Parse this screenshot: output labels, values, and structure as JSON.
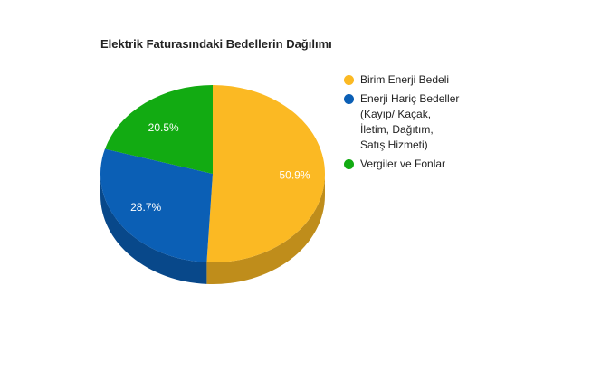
{
  "chart_data": {
    "type": "pie",
    "title": "Elektrik Faturasındaki Bedellerin Dağılımı",
    "categories": [
      "Birim Enerji Bedeli",
      "Enerji Hariç Bedeller (Kayıp/ Kaçak, İletim, Dağıtım, Satış Hizmeti)",
      "Vergiler ve Fonlar"
    ],
    "values": [
      50.9,
      28.7,
      20.5
    ],
    "value_labels": [
      "50.9%",
      "28.7%",
      "20.5%"
    ],
    "colors": [
      "#fbb923",
      "#0b5fb5",
      "#12ab12"
    ],
    "legend": "right"
  }
}
